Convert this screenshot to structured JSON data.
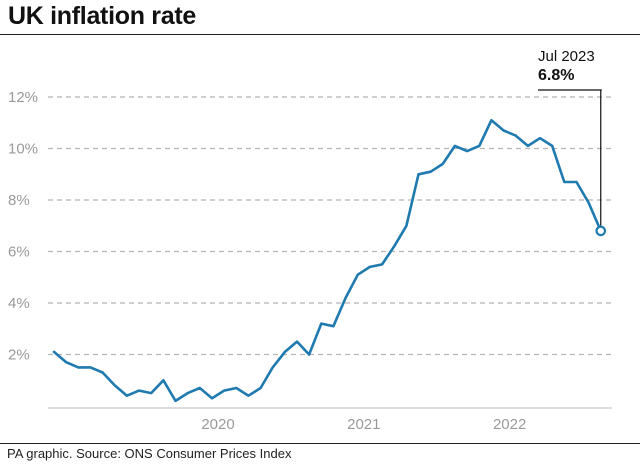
{
  "title": "UK inflation rate",
  "source": "PA graphic. Source: ONS Consumer Prices Index",
  "callout": {
    "date": "Jul 2023",
    "value": "6.8%"
  },
  "colors": {
    "line": "#1f7ab0",
    "grid": "#b5b5b5",
    "text": "#1a1a1a",
    "axis_text": "#9a9a9a"
  },
  "chart_data": {
    "type": "line",
    "title": "UK inflation rate",
    "xlabel": "",
    "ylabel": "",
    "x_start": "Jul 2019",
    "x_end": "Jul 2023",
    "frequency": "monthly",
    "x_tick_labels": [
      "2020",
      "2021",
      "2022"
    ],
    "y_tick_labels": [
      "2%",
      "4%",
      "6%",
      "8%",
      "10%",
      "12%"
    ],
    "y_ticks": [
      2,
      4,
      6,
      8,
      10,
      12
    ],
    "ylim": [
      0,
      12.3
    ],
    "grid": "horizontal dashed",
    "series": [
      {
        "values": [
          2.1,
          1.7,
          1.5,
          1.5,
          1.3,
          0.8,
          0.4,
          0.6,
          0.5,
          1.0,
          0.2,
          0.5,
          0.7,
          0.3,
          0.6,
          0.7,
          0.4,
          0.7,
          1.5,
          2.1,
          2.5,
          2.0,
          3.2,
          3.1,
          4.2,
          5.1,
          5.4,
          5.5,
          6.2,
          7.0,
          9.0,
          9.1,
          9.4,
          10.1,
          9.9,
          10.1,
          11.1,
          10.7,
          10.5,
          10.1,
          10.4,
          10.1,
          8.7,
          8.7,
          7.9,
          6.8
        ],
        "x_offset_months": 3
      }
    ],
    "annotations": [
      {
        "x": "Jul 2023",
        "y": 6.8,
        "label": "6.8%"
      }
    ]
  }
}
